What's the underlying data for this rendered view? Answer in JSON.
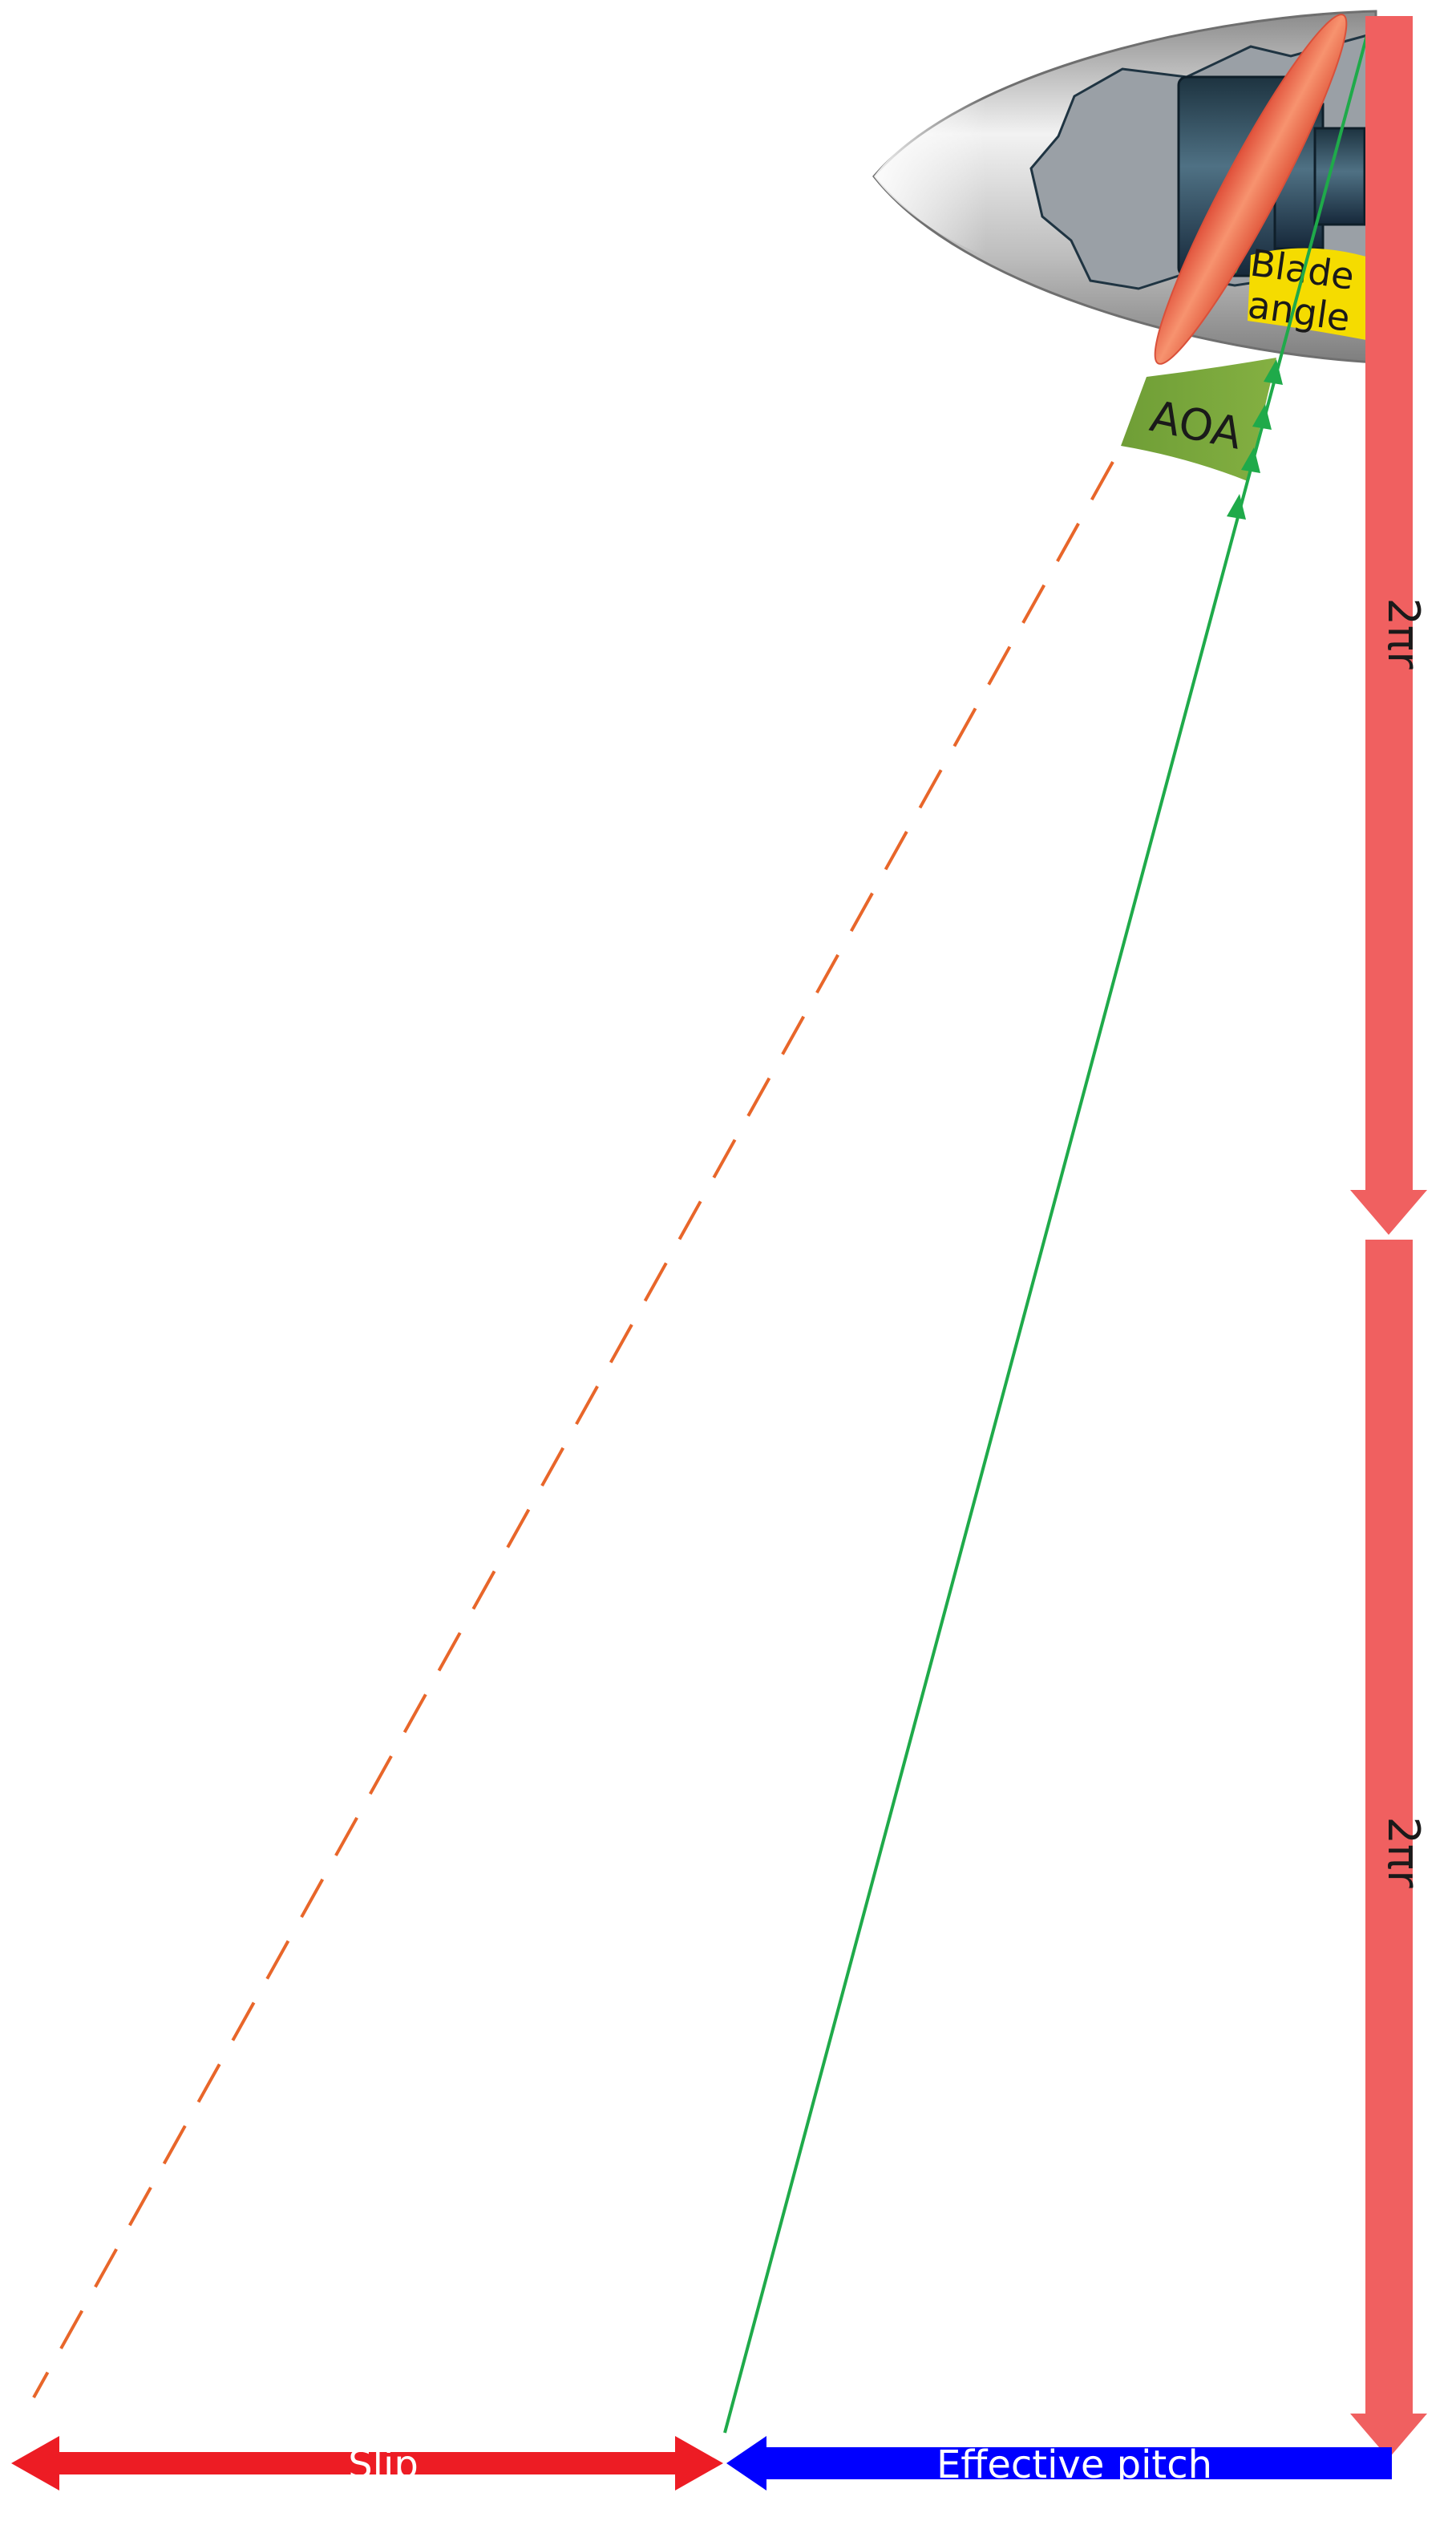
{
  "labels": {
    "blade_angle_line1": "Blade",
    "blade_angle_line2": "angle",
    "aoa": "AOA",
    "two_pi_r_upper": "2πr",
    "two_pi_r_lower": "2πr",
    "slip": "Slip",
    "effective_pitch": "Effective pitch"
  },
  "colors": {
    "circumference_arrow": "#f06060",
    "slip_arrow": "#ed1c24",
    "effective_pitch_arrow": "#0000ff",
    "blade": "#f47a5a",
    "geometric_pitch_line": "#e8662a",
    "effective_path_line": "#1faa4a",
    "blade_angle_fill": "#f5dc00",
    "aoa_fill": "#77a53c",
    "spinner_gray": "#b8b8b8",
    "hub_dark": "#2e4a5c"
  }
}
